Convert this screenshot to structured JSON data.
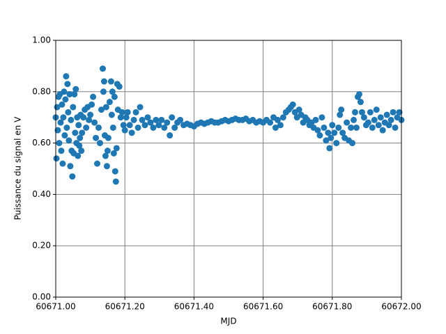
{
  "chart_data": {
    "type": "scatter",
    "x_label": "MJD",
    "y_label": "Puissance du signal en V",
    "color": "#1f77b4",
    "grid": true,
    "grid_color": "#808080",
    "xlim": [
      60671.0,
      60672.0
    ],
    "xticks": [
      {
        "value": 60671.0,
        "label": "60671.00"
      },
      {
        "value": 60671.2,
        "label": "60671.20"
      },
      {
        "value": 60671.4,
        "label": "60671.40"
      },
      {
        "value": 60671.6,
        "label": "60671.60"
      },
      {
        "value": 60671.8,
        "label": "60671.80"
      },
      {
        "value": 60672.0,
        "label": "60672.00"
      }
    ],
    "ylim": [
      0,
      1
    ],
    "yticks": [
      {
        "value": 0,
        "label": "0.00"
      },
      {
        "value": 0.2,
        "label": "0.20"
      },
      {
        "value": 0.4,
        "label": "0.40"
      },
      {
        "value": 0.6,
        "label": "0.60"
      },
      {
        "value": 0.8,
        "label": "0.80"
      },
      {
        "value": 1,
        "label": "1.00"
      }
    ],
    "x": [
      60671.0,
      60671.002,
      60671.004,
      60671.006,
      60671.008,
      60671.01,
      60671.012,
      60671.014,
      60671.016,
      60671.018,
      60671.02,
      60671.022,
      60671.024,
      60671.026,
      60671.028,
      60671.03,
      60671.032,
      60671.034,
      60671.036,
      60671.038,
      60671.04,
      60671.042,
      60671.044,
      60671.046,
      60671.048,
      60671.05,
      60671.052,
      60671.054,
      60671.056,
      60671.058,
      60671.06,
      60671.062,
      60671.064,
      60671.066,
      60671.068,
      60671.07,
      60671.072,
      60671.074,
      60671.076,
      60671.08,
      60671.084,
      60671.088,
      60671.092,
      60671.096,
      60671.1,
      60671.104,
      60671.108,
      60671.112,
      60671.116,
      60671.12,
      60671.124,
      60671.128,
      60671.132,
      60671.136,
      60671.138,
      60671.14,
      60671.142,
      60671.144,
      60671.146,
      60671.148,
      60671.15,
      60671.152,
      60671.156,
      60671.16,
      60671.162,
      60671.164,
      60671.166,
      60671.168,
      60671.17,
      60671.172,
      60671.174,
      60671.176,
      60671.178,
      60671.18,
      60671.184,
      60671.188,
      60671.192,
      60671.196,
      60671.2,
      60671.204,
      60671.208,
      60671.214,
      60671.22,
      60671.226,
      60671.232,
      60671.238,
      60671.244,
      60671.25,
      60671.258,
      60671.266,
      60671.274,
      60671.282,
      60671.29,
      60671.298,
      60671.306,
      60671.314,
      60671.322,
      60671.33,
      60671.336,
      60671.344,
      60671.352,
      60671.36,
      60671.37,
      60671.38,
      60671.39,
      60671.4,
      60671.41,
      60671.42,
      60671.43,
      60671.44,
      60671.45,
      60671.46,
      60671.47,
      60671.48,
      60671.49,
      60671.5,
      60671.51,
      60671.52,
      60671.53,
      60671.54,
      60671.55,
      60671.56,
      60671.57,
      60671.58,
      60671.59,
      60671.6,
      60671.61,
      60671.62,
      60671.63,
      60671.636,
      60671.642,
      60671.65,
      60671.658,
      60671.666,
      60671.674,
      60671.68,
      60671.686,
      60671.692,
      60671.698,
      60671.704,
      60671.71,
      60671.716,
      60671.722,
      60671.728,
      60671.734,
      60671.74,
      60671.746,
      60671.752,
      60671.758,
      60671.764,
      60671.77,
      60671.776,
      60671.782,
      60671.788,
      60671.792,
      60671.796,
      60671.8,
      60671.806,
      60671.812,
      60671.818,
      60671.822,
      60671.826,
      60671.83,
      60671.836,
      60671.842,
      60671.848,
      60671.854,
      60671.858,
      60671.862,
      60671.866,
      60671.87,
      60671.874,
      60671.878,
      60671.882,
      60671.886,
      60671.892,
      60671.898,
      60671.904,
      60671.91,
      60671.916,
      60671.922,
      60671.928,
      60671.934,
      60671.94,
      60671.946,
      60671.952,
      60671.958,
      60671.964,
      60671.97,
      60671.976,
      60671.982,
      60671.988,
      60671.994,
      60672.0
    ],
    "values": [
      0.7,
      0.54,
      0.74,
      0.65,
      0.78,
      0.6,
      0.79,
      0.68,
      0.57,
      0.75,
      0.52,
      0.7,
      0.8,
      0.63,
      0.77,
      0.86,
      0.66,
      0.83,
      0.72,
      0.61,
      0.79,
      0.51,
      0.69,
      0.57,
      0.47,
      0.74,
      0.56,
      0.79,
      0.64,
      0.81,
      0.6,
      0.7,
      0.55,
      0.67,
      0.59,
      0.62,
      0.71,
      0.57,
      0.64,
      0.7,
      0.73,
      0.66,
      0.74,
      0.69,
      0.71,
      0.75,
      0.78,
      0.68,
      0.62,
      0.52,
      0.66,
      0.6,
      0.73,
      0.89,
      0.8,
      0.84,
      0.63,
      0.55,
      0.74,
      0.51,
      0.57,
      0.62,
      0.76,
      0.84,
      0.71,
      0.8,
      0.66,
      0.56,
      0.78,
      0.49,
      0.45,
      0.58,
      0.83,
      0.73,
      0.82,
      0.7,
      0.72,
      0.67,
      0.65,
      0.7,
      0.72,
      0.67,
      0.64,
      0.69,
      0.72,
      0.66,
      0.74,
      0.69,
      0.67,
      0.7,
      0.68,
      0.66,
      0.69,
      0.67,
      0.69,
      0.66,
      0.68,
      0.63,
      0.7,
      0.66,
      0.68,
      0.69,
      0.67,
      0.675,
      0.67,
      0.665,
      0.675,
      0.68,
      0.675,
      0.68,
      0.685,
      0.68,
      0.68,
      0.685,
      0.69,
      0.685,
      0.69,
      0.695,
      0.69,
      0.69,
      0.695,
      0.685,
      0.69,
      0.68,
      0.685,
      0.68,
      0.69,
      0.68,
      0.7,
      0.66,
      0.69,
      0.67,
      0.7,
      0.72,
      0.73,
      0.74,
      0.75,
      0.72,
      0.7,
      0.73,
      0.71,
      0.68,
      0.7,
      0.69,
      0.67,
      0.68,
      0.66,
      0.69,
      0.65,
      0.63,
      0.7,
      0.66,
      0.61,
      0.64,
      0.58,
      0.62,
      0.67,
      0.64,
      0.6,
      0.66,
      0.71,
      0.73,
      0.64,
      0.62,
      0.68,
      0.61,
      0.66,
      0.6,
      0.69,
      0.72,
      0.66,
      0.78,
      0.79,
      0.76,
      0.72,
      0.7,
      0.67,
      0.68,
      0.72,
      0.66,
      0.69,
      0.73,
      0.67,
      0.7,
      0.65,
      0.68,
      0.71,
      0.67,
      0.69,
      0.72,
      0.66,
      0.7,
      0.72,
      0.69
    ]
  }
}
